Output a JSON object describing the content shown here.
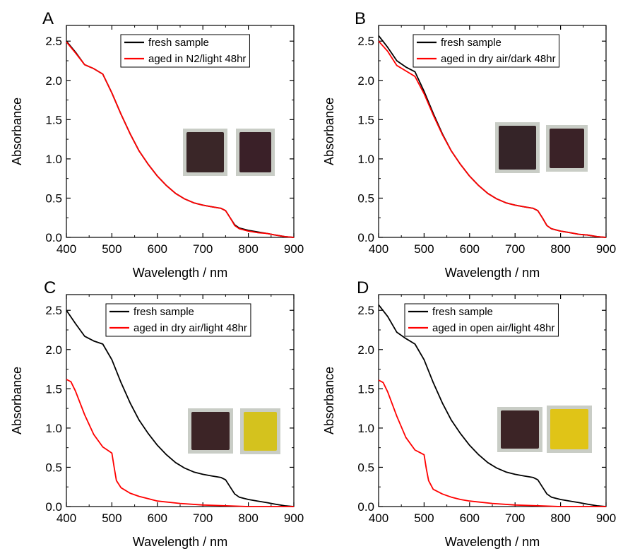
{
  "chart_data": [
    {
      "type": "line",
      "panel_label": "A",
      "xlabel": "Wavelength / nm",
      "ylabel": "Absorbance",
      "xlim": [
        400,
        900
      ],
      "ylim": [
        0,
        2.7
      ],
      "xticks": [
        400,
        500,
        600,
        700,
        800,
        900
      ],
      "yticks": [
        0.0,
        0.5,
        1.0,
        1.5,
        2.0,
        2.5
      ],
      "xtick_labels": [
        "400",
        "500",
        "600",
        "700",
        "800",
        "900"
      ],
      "ytick_labels": [
        "0.0",
        "0.5",
        "1.0",
        "1.5",
        "2.0",
        "2.5"
      ],
      "legend_position": "top-right",
      "grid": false,
      "inset_photos": [
        {
          "color": "#3a2628"
        },
        {
          "color": "#3a2028"
        }
      ],
      "series": [
        {
          "name": "fresh sample",
          "color": "#000000",
          "x": [
            400,
            420,
            440,
            460,
            480,
            500,
            520,
            540,
            560,
            580,
            600,
            620,
            640,
            660,
            680,
            700,
            720,
            740,
            750,
            760,
            770,
            780,
            800,
            820,
            840,
            860,
            880,
            900
          ],
          "y": [
            2.5,
            2.36,
            2.2,
            2.15,
            2.08,
            1.84,
            1.57,
            1.32,
            1.1,
            0.93,
            0.78,
            0.66,
            0.56,
            0.49,
            0.44,
            0.41,
            0.39,
            0.37,
            0.34,
            0.25,
            0.16,
            0.12,
            0.09,
            0.07,
            0.05,
            0.03,
            0.01,
            0.0
          ]
        },
        {
          "name": "aged in N2/light 48hr",
          "color": "#ff0000",
          "x": [
            400,
            420,
            440,
            460,
            480,
            500,
            520,
            540,
            560,
            580,
            600,
            620,
            640,
            660,
            680,
            700,
            720,
            740,
            750,
            760,
            770,
            780,
            800,
            820,
            840,
            860,
            880,
            900
          ],
          "y": [
            2.49,
            2.35,
            2.2,
            2.15,
            2.08,
            1.84,
            1.57,
            1.32,
            1.1,
            0.93,
            0.78,
            0.66,
            0.56,
            0.49,
            0.44,
            0.41,
            0.39,
            0.37,
            0.34,
            0.25,
            0.15,
            0.11,
            0.08,
            0.06,
            0.05,
            0.03,
            0.01,
            0.0
          ]
        }
      ]
    },
    {
      "type": "line",
      "panel_label": "B",
      "xlabel": "Wavelength / nm",
      "ylabel": "Absorbance",
      "xlim": [
        400,
        900
      ],
      "ylim": [
        0,
        2.7
      ],
      "xticks": [
        400,
        500,
        600,
        700,
        800,
        900
      ],
      "yticks": [
        0.0,
        0.5,
        1.0,
        1.5,
        2.0,
        2.5
      ],
      "xtick_labels": [
        "400",
        "500",
        "600",
        "700",
        "800",
        "900"
      ],
      "ytick_labels": [
        "0.0",
        "0.5",
        "1.0",
        "1.5",
        "2.0",
        "2.5"
      ],
      "legend_position": "top-right",
      "grid": false,
      "inset_photos": [
        {
          "color": "#352428"
        },
        {
          "color": "#3a2227"
        }
      ],
      "series": [
        {
          "name": "fresh sample",
          "color": "#000000",
          "x": [
            400,
            420,
            440,
            460,
            480,
            500,
            520,
            540,
            560,
            580,
            600,
            620,
            640,
            660,
            680,
            700,
            720,
            740,
            750,
            760,
            770,
            780,
            800,
            820,
            840,
            860,
            880,
            900
          ],
          "y": [
            2.57,
            2.42,
            2.25,
            2.17,
            2.11,
            1.86,
            1.58,
            1.32,
            1.1,
            0.93,
            0.78,
            0.66,
            0.56,
            0.49,
            0.44,
            0.41,
            0.39,
            0.37,
            0.34,
            0.25,
            0.15,
            0.11,
            0.08,
            0.06,
            0.04,
            0.03,
            0.01,
            0.0
          ]
        },
        {
          "name": "aged in dry air/dark 48hr",
          "color": "#ff0000",
          "x": [
            400,
            420,
            440,
            460,
            480,
            500,
            520,
            540,
            560,
            580,
            600,
            620,
            640,
            660,
            680,
            700,
            720,
            740,
            750,
            760,
            770,
            780,
            800,
            820,
            840,
            860,
            880,
            900
          ],
          "y": [
            2.5,
            2.37,
            2.19,
            2.12,
            2.05,
            1.83,
            1.56,
            1.31,
            1.1,
            0.93,
            0.78,
            0.66,
            0.56,
            0.49,
            0.44,
            0.41,
            0.39,
            0.37,
            0.34,
            0.25,
            0.15,
            0.11,
            0.08,
            0.06,
            0.04,
            0.03,
            0.01,
            0.0
          ]
        }
      ]
    },
    {
      "type": "line",
      "panel_label": "C",
      "xlabel": "Wavelength / nm",
      "ylabel": "Absorbance",
      "xlim": [
        400,
        900
      ],
      "ylim": [
        0,
        2.7
      ],
      "xticks": [
        400,
        500,
        600,
        700,
        800,
        900
      ],
      "yticks": [
        0.0,
        0.5,
        1.0,
        1.5,
        2.0,
        2.5
      ],
      "xtick_labels": [
        "400",
        "500",
        "600",
        "700",
        "800",
        "900"
      ],
      "ytick_labels": [
        "0.0",
        "0.5",
        "1.0",
        "1.5",
        "2.0",
        "2.5"
      ],
      "legend_position": "top-right",
      "grid": false,
      "inset_photos": [
        {
          "color": "#3c2426"
        },
        {
          "color": "#d4c21e"
        }
      ],
      "series": [
        {
          "name": "fresh sample",
          "color": "#000000",
          "x": [
            400,
            420,
            440,
            460,
            480,
            500,
            520,
            540,
            560,
            580,
            600,
            620,
            640,
            660,
            680,
            700,
            720,
            740,
            750,
            760,
            770,
            780,
            800,
            820,
            840,
            860,
            880,
            900
          ],
          "y": [
            2.5,
            2.33,
            2.17,
            2.11,
            2.07,
            1.87,
            1.58,
            1.32,
            1.1,
            0.93,
            0.78,
            0.66,
            0.56,
            0.49,
            0.44,
            0.41,
            0.39,
            0.37,
            0.34,
            0.25,
            0.16,
            0.12,
            0.09,
            0.07,
            0.05,
            0.03,
            0.01,
            0.0
          ]
        },
        {
          "name": "aged in dry air/light 48hr",
          "color": "#ff0000",
          "x": [
            400,
            410,
            420,
            440,
            460,
            480,
            490,
            500,
            505,
            510,
            520,
            540,
            560,
            580,
            600,
            650,
            700,
            750,
            800,
            850,
            900
          ],
          "y": [
            1.62,
            1.59,
            1.47,
            1.17,
            0.92,
            0.76,
            0.72,
            0.68,
            0.5,
            0.33,
            0.24,
            0.17,
            0.13,
            0.1,
            0.07,
            0.04,
            0.02,
            0.01,
            0.0,
            0.0,
            0.0
          ]
        }
      ]
    },
    {
      "type": "line",
      "panel_label": "D",
      "xlabel": "Wavelength / nm",
      "ylabel": "Absorbance",
      "xlim": [
        400,
        900
      ],
      "ylim": [
        0,
        2.7
      ],
      "xticks": [
        400,
        500,
        600,
        700,
        800,
        900
      ],
      "yticks": [
        0.0,
        0.5,
        1.0,
        1.5,
        2.0,
        2.5
      ],
      "xtick_labels": [
        "400",
        "500",
        "600",
        "700",
        "800",
        "900"
      ],
      "ytick_labels": [
        "0.0",
        "0.5",
        "1.0",
        "1.5",
        "2.0",
        "2.5"
      ],
      "legend_position": "top-right",
      "grid": false,
      "inset_photos": [
        {
          "color": "#3c2426"
        },
        {
          "color": "#e0c417"
        }
      ],
      "series": [
        {
          "name": "fresh sample",
          "color": "#000000",
          "x": [
            400,
            420,
            440,
            460,
            480,
            500,
            520,
            540,
            560,
            580,
            600,
            620,
            640,
            660,
            680,
            700,
            720,
            740,
            750,
            760,
            770,
            780,
            800,
            820,
            840,
            860,
            880,
            900
          ],
          "y": [
            2.57,
            2.42,
            2.22,
            2.14,
            2.07,
            1.87,
            1.58,
            1.32,
            1.1,
            0.93,
            0.78,
            0.66,
            0.56,
            0.49,
            0.44,
            0.41,
            0.39,
            0.37,
            0.34,
            0.25,
            0.16,
            0.12,
            0.09,
            0.07,
            0.05,
            0.03,
            0.01,
            0.0
          ]
        },
        {
          "name": "aged in open air/light 48hr",
          "color": "#ff0000",
          "x": [
            400,
            410,
            420,
            440,
            460,
            480,
            490,
            500,
            505,
            510,
            520,
            540,
            560,
            580,
            600,
            650,
            700,
            750,
            800,
            850,
            900
          ],
          "y": [
            1.61,
            1.58,
            1.46,
            1.15,
            0.88,
            0.72,
            0.69,
            0.66,
            0.48,
            0.33,
            0.22,
            0.16,
            0.12,
            0.09,
            0.07,
            0.04,
            0.02,
            0.01,
            0.0,
            0.0,
            0.0
          ]
        }
      ]
    }
  ]
}
